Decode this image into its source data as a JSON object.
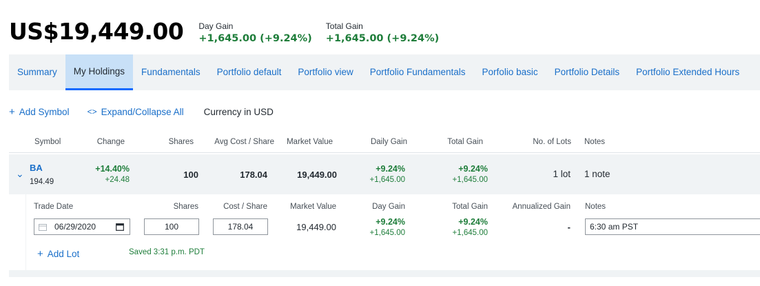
{
  "header": {
    "price": "US$19,449.00",
    "day_gain": {
      "label": "Day Gain",
      "value": "+1,645.00 (+9.24%)"
    },
    "total_gain": {
      "label": "Total Gain",
      "value": "+1,645.00 (+9.24%)"
    }
  },
  "tabs": [
    {
      "label": "Summary"
    },
    {
      "label": "My Holdings"
    },
    {
      "label": "Fundamentals"
    },
    {
      "label": "Portfolio default"
    },
    {
      "label": "Portfolio view"
    },
    {
      "label": "Portfolio Fundamentals"
    },
    {
      "label": "Porfolio basic"
    },
    {
      "label": "Portfolio Details"
    },
    {
      "label": "Portfolio Extended Hours"
    }
  ],
  "toolbar": {
    "add_symbol": "Add Symbol",
    "expand_collapse": "Expand/Collapse All",
    "currency": "Currency in USD"
  },
  "columns": {
    "symbol": "Symbol",
    "change": "Change",
    "shares": "Shares",
    "avg_cost": "Avg Cost / Share",
    "market_value": "Market Value",
    "daily_gain": "Daily Gain",
    "total_gain": "Total Gain",
    "lots": "No. of Lots",
    "notes": "Notes"
  },
  "holding": {
    "symbol": "BA",
    "price": "194.49",
    "change_pct": "+14.40%",
    "change_abs": "+24.48",
    "shares": "100",
    "avg_cost": "178.04",
    "market_value": "19,449.00",
    "daily_gain_pct": "+9.24%",
    "daily_gain_abs": "+1,645.00",
    "total_gain_pct": "+9.24%",
    "total_gain_abs": "+1,645.00",
    "lots": "1 lot",
    "notes": "1 note"
  },
  "lot_columns": {
    "trade_date": "Trade Date",
    "shares": "Shares",
    "cost": "Cost / Share",
    "market_value": "Market Value",
    "day_gain": "Day Gain",
    "total_gain": "Total Gain",
    "annualized_gain": "Annualized Gain",
    "notes": "Notes"
  },
  "lot": {
    "trade_date": "06/29/2020",
    "shares": "100",
    "cost": "178.04",
    "market_value": "19,449.00",
    "day_gain_pct": "+9.24%",
    "day_gain_abs": "+1,645.00",
    "total_gain_pct": "+9.24%",
    "total_gain_abs": "+1,645.00",
    "annualized_gain": "-",
    "notes": "6:30 am PST"
  },
  "lot_actions": {
    "add_lot": "Add Lot",
    "saved": "Saved 3:31 p.m. PDT"
  },
  "colors": {
    "gain_green": "#1e7d3a",
    "link_blue": "#1a6fc9",
    "tab_bg": "#f0f3f5",
    "active_tab_bg": "#c8e0f7"
  }
}
